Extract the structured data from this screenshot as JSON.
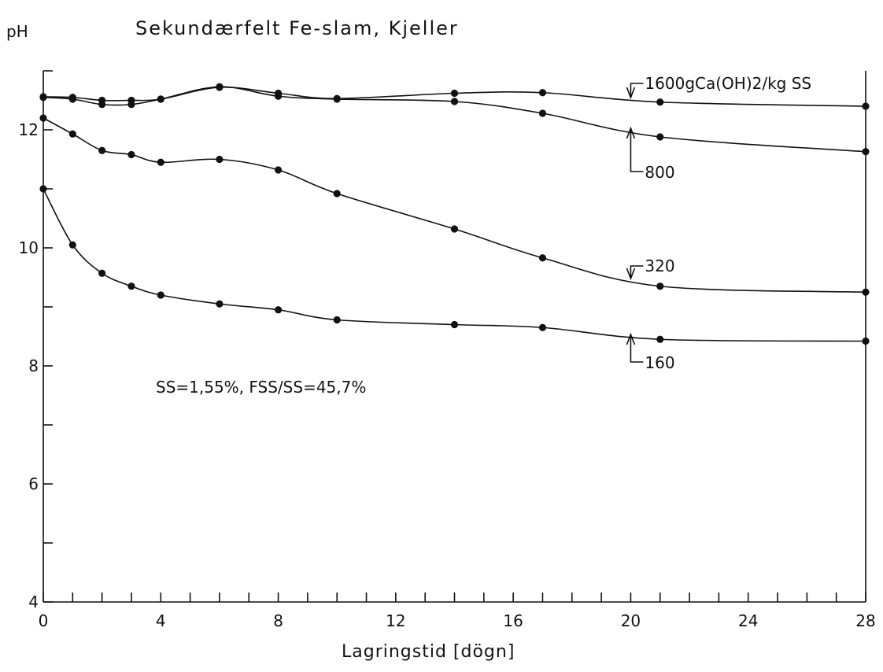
{
  "chart_data": {
    "type": "line",
    "title": "Sekundærfelt Fe-slam, Kjeller",
    "ylabel": "pH",
    "xlabel": "Lagringstid [dögn]",
    "xlim": [
      0,
      28
    ],
    "ylim": [
      4,
      13
    ],
    "x_ticks": [
      0,
      4,
      8,
      12,
      16,
      20,
      24,
      28
    ],
    "y_ticks": [
      4,
      6,
      8,
      10,
      12
    ],
    "annotation": "SS=1,55%, FSS/SS=45,7%",
    "series": [
      {
        "label": "1600gCa(OH)2/kg SS",
        "points": [
          [
            0,
            12.56
          ],
          [
            1,
            12.55
          ],
          [
            2,
            12.5
          ],
          [
            3,
            12.5
          ],
          [
            4,
            12.52
          ],
          [
            6,
            12.72
          ],
          [
            8,
            12.62
          ],
          [
            10,
            12.53
          ],
          [
            14,
            12.62
          ],
          [
            17,
            12.63
          ],
          [
            21,
            12.47
          ],
          [
            28,
            12.4
          ]
        ]
      },
      {
        "label": "800",
        "points": [
          [
            0,
            12.55
          ],
          [
            1,
            12.52
          ],
          [
            2,
            12.43
          ],
          [
            3,
            12.43
          ],
          [
            4,
            12.52
          ],
          [
            6,
            12.73
          ],
          [
            8,
            12.57
          ],
          [
            10,
            12.52
          ],
          [
            14,
            12.48
          ],
          [
            17,
            12.28
          ],
          [
            21,
            11.88
          ],
          [
            28,
            11.63
          ]
        ]
      },
      {
        "label": "320",
        "points": [
          [
            0,
            12.2
          ],
          [
            1,
            11.93
          ],
          [
            2,
            11.65
          ],
          [
            3,
            11.58
          ],
          [
            4,
            11.45
          ],
          [
            6,
            11.5
          ],
          [
            8,
            11.32
          ],
          [
            10,
            10.92
          ],
          [
            14,
            10.32
          ],
          [
            17,
            9.83
          ],
          [
            21,
            9.35
          ],
          [
            28,
            9.25
          ]
        ]
      },
      {
        "label": "160",
        "points": [
          [
            0,
            11.0
          ],
          [
            1,
            10.05
          ],
          [
            2,
            9.57
          ],
          [
            3,
            9.35
          ],
          [
            4,
            9.2
          ],
          [
            6,
            9.05
          ],
          [
            8,
            8.95
          ],
          [
            10,
            8.78
          ],
          [
            14,
            8.7
          ],
          [
            17,
            8.65
          ],
          [
            21,
            8.45
          ],
          [
            28,
            8.42
          ]
        ]
      }
    ]
  }
}
